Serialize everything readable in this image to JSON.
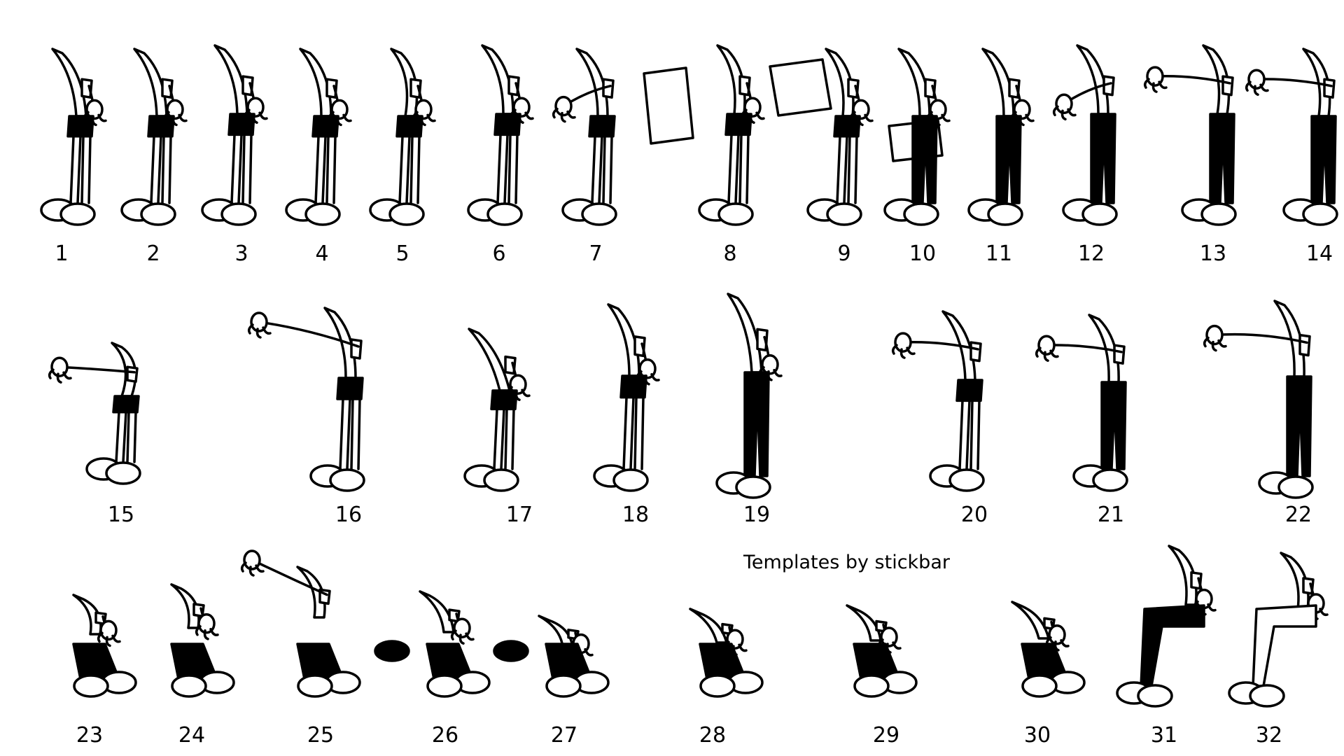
{
  "sheet": {
    "credit": "Templates by stickbar",
    "colors": {
      "background": "#ffffff",
      "ink": "#000000"
    },
    "pose_labels": [
      "1",
      "2",
      "3",
      "4",
      "5",
      "6",
      "7",
      "8",
      "9",
      "10",
      "11",
      "12",
      "13",
      "14",
      "15",
      "16",
      "17",
      "18",
      "19",
      "20",
      "21",
      "22",
      "23",
      "24",
      "25",
      "26",
      "27",
      "28",
      "29",
      "30",
      "31",
      "32"
    ]
  }
}
